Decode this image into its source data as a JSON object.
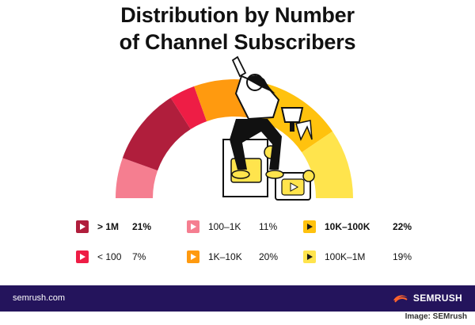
{
  "chart_data": {
    "type": "pie",
    "title": "Distribution by Number\nof Channel Subscribers",
    "categories": [
      "< 100",
      "100–1K",
      "1K–10K",
      "10K–100K",
      "100K–1M",
      "> 1M"
    ],
    "series": [
      {
        "values": [
          7,
          11,
          20,
          22,
          19,
          21
        ]
      }
    ],
    "value_labels": [
      "7%",
      "11%",
      "20%",
      "22%",
      "19%",
      "21%"
    ],
    "gauge_order": [
      "100–1K",
      "> 1M",
      "< 100",
      "1K–10K",
      "10K–100K",
      "100K–1M"
    ],
    "colors": {
      "> 1M": "#b01e3c",
      "< 100": "#ee1d45",
      "100–1K": "#f57e90",
      "1K–10K": "#ff9a0f",
      "10K–100K": "#ffc20e",
      "100K–1M": "#ffe44d"
    },
    "legend": [
      {
        "label": "> 1M",
        "value": "21%",
        "bold": true
      },
      {
        "label": "< 100",
        "value": "7%",
        "bold": false
      },
      {
        "label": "100–1K",
        "value": "11%",
        "bold": false
      },
      {
        "label": "1K–10K",
        "value": "20%",
        "bold": false
      },
      {
        "label": "10K–100K",
        "value": "22%",
        "bold": true
      },
      {
        "label": "100K–1M",
        "value": "19%",
        "bold": false
      }
    ]
  },
  "footer": {
    "url": "semrush.com",
    "brand": "SEMRUSH",
    "background": "#24145c",
    "logo_color": "#ff642d"
  },
  "credit": "Image: SEMrush"
}
